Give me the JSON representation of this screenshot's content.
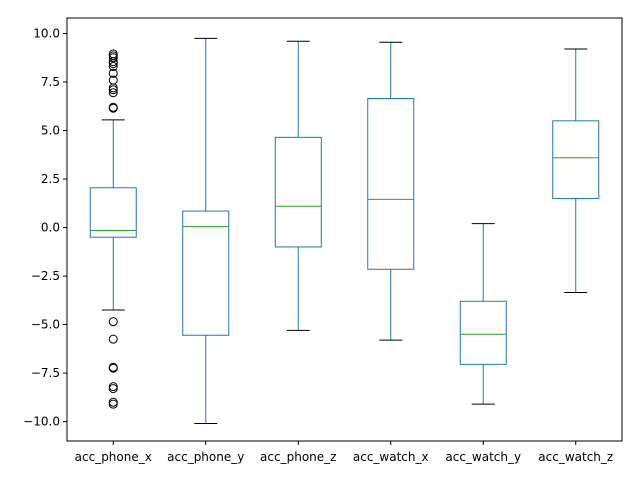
{
  "chart_data": {
    "type": "box",
    "title": "",
    "xlabel": "",
    "ylabel": "",
    "ylim": [
      -11.0,
      10.8
    ],
    "yticks": [
      -10.0,
      -7.5,
      -5.0,
      -2.5,
      0.0,
      2.5,
      5.0,
      7.5,
      10.0
    ],
    "ytick_labels": [
      "−10.0",
      "−7.5",
      "−5.0",
      "−2.5",
      "0.0",
      "2.5",
      "5.0",
      "7.5",
      "10.0"
    ],
    "grid": false,
    "colors": {
      "box": "#1f77b4",
      "median": "#2ca02c",
      "whisker_cap": "#000000",
      "flier": "#000000"
    },
    "categories": [
      "acc_phone_x",
      "acc_phone_y",
      "acc_phone_z",
      "acc_watch_x",
      "acc_watch_y",
      "acc_watch_z"
    ],
    "boxes": [
      {
        "name": "acc_phone_x",
        "whislo": -4.25,
        "q1": -0.5,
        "med": -0.15,
        "q3": 2.05,
        "whishi": 5.55,
        "fliers": [
          6.15,
          6.2,
          6.95,
          7.1,
          7.2,
          7.6,
          7.95,
          8.3,
          8.45,
          8.55,
          8.75,
          8.85,
          8.95,
          -4.85,
          -5.75,
          -7.2,
          -7.25,
          -8.2,
          -8.3,
          -9.0,
          -9.1
        ]
      },
      {
        "name": "acc_phone_y",
        "whislo": -10.1,
        "q1": -5.55,
        "med": 0.05,
        "q3": 0.85,
        "whishi": 9.75,
        "fliers": []
      },
      {
        "name": "acc_phone_z",
        "whislo": -5.3,
        "q1": -1.0,
        "med": 1.1,
        "q3": 4.65,
        "whishi": 9.6,
        "fliers": []
      },
      {
        "name": "acc_watch_x",
        "whislo": -5.8,
        "q1": -2.15,
        "med": 1.45,
        "q3": 6.65,
        "whishi": 9.55,
        "fliers": []
      },
      {
        "name": "acc_watch_y",
        "whislo": -9.1,
        "q1": -7.05,
        "med": -5.5,
        "q3": -3.8,
        "whishi": 0.2,
        "fliers": []
      },
      {
        "name": "acc_watch_z",
        "whislo": -3.35,
        "q1": 1.5,
        "med": 3.6,
        "q3": 5.5,
        "whishi": 9.2,
        "fliers": []
      }
    ]
  }
}
